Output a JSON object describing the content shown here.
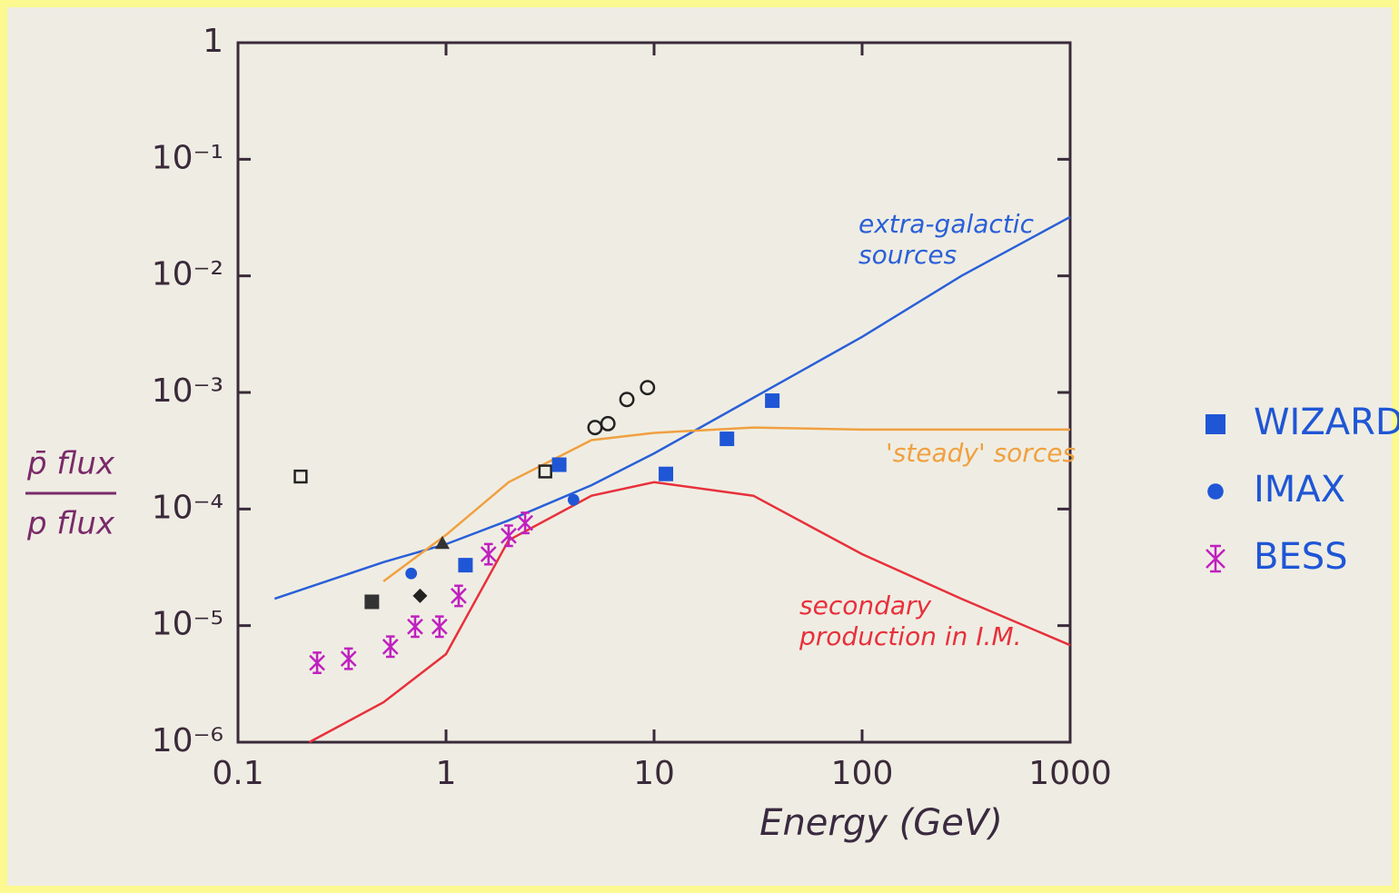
{
  "chart_data": {
    "type": "scatter",
    "xlabel": "Energy (GeV)",
    "ylabel": [
      "p̄ flux",
      "p flux"
    ],
    "xscale": "log",
    "yscale": "log",
    "xlim": [
      0.1,
      1000
    ],
    "ylim": [
      1e-06,
      1
    ],
    "xticks": [
      0.1,
      1,
      10,
      100,
      1000
    ],
    "yticks": [
      {
        "value": 1e-06,
        "label": "10⁻⁶"
      },
      {
        "value": 1e-05,
        "label": "10⁻⁵"
      },
      {
        "value": 0.0001,
        "label": "10⁻⁴"
      },
      {
        "value": 0.001,
        "label": "10⁻³"
      },
      {
        "value": 0.01,
        "label": "10⁻²"
      },
      {
        "value": 0.1,
        "label": "10⁻¹"
      },
      1
    ],
    "legend": "right",
    "curves": [
      {
        "label_lines": [
          "extra-galactic",
          "sources"
        ],
        "color": "#2a5fd8",
        "x": [
          0.15,
          0.5,
          1,
          2,
          5,
          10,
          30,
          100,
          300,
          1000
        ],
        "values": [
          1.7e-05,
          3.5e-05,
          5e-05,
          8e-05,
          0.00016,
          0.0003,
          0.0009,
          0.003,
          0.01,
          0.032
        ]
      },
      {
        "label_lines": [
          "'steady' sorces"
        ],
        "color": "#f0a040",
        "x": [
          0.5,
          1,
          2,
          5,
          10,
          30,
          100,
          1000
        ],
        "values": [
          2.4e-05,
          6e-05,
          0.00017,
          0.00039,
          0.00045,
          0.0005,
          0.00048,
          0.00048
        ]
      },
      {
        "label_lines": [
          "secondary",
          "production in I.M."
        ],
        "color": "#e8303c",
        "x": [
          0.22,
          0.5,
          1,
          2,
          5,
          10,
          30,
          100,
          300,
          1000
        ],
        "values": [
          1e-06,
          2.2e-06,
          5.7e-06,
          5.4e-05,
          0.00013,
          0.00017,
          0.00013,
          4.1e-05,
          1.7e-05,
          6.8e-06
        ]
      }
    ],
    "series": [
      {
        "name": "WIZARD",
        "marker": "square",
        "color": "#1f56d6",
        "x": [
          1.24,
          3.5,
          11.4,
          22.4,
          37
        ],
        "values": [
          3.3e-05,
          0.00024,
          0.0002,
          0.0004,
          0.00085
        ]
      },
      {
        "name": "IMAX",
        "marker": "circle",
        "color": "#1f56d6",
        "x": [
          0.68,
          4.1
        ],
        "values": [
          2.8e-05,
          0.00012
        ]
      },
      {
        "name": "BESS",
        "marker": "star",
        "color": "#c020c0",
        "x": [
          0.24,
          0.34,
          0.54,
          0.71,
          0.93,
          1.15,
          1.6,
          2.0,
          2.4
        ],
        "values": [
          4.8e-06,
          5.2e-06,
          6.6e-06,
          9.8e-06,
          9.8e-06,
          1.8e-05,
          4.1e-05,
          5.9e-05,
          7.6e-05
        ]
      }
    ],
    "unlabeled_series": [
      {
        "marker": "square-open",
        "color": "#222222",
        "x": [
          0.2,
          3.0
        ],
        "values": [
          0.00019,
          0.00021
        ]
      },
      {
        "marker": "square",
        "color": "#333333",
        "x": [
          0.44
        ],
        "values": [
          1.6e-05
        ]
      },
      {
        "marker": "diamond",
        "color": "#222222",
        "x": [
          0.75
        ],
        "values": [
          1.8e-05
        ]
      },
      {
        "marker": "triangle",
        "color": "#333333",
        "x": [
          0.96
        ],
        "values": [
          5.1e-05
        ]
      },
      {
        "marker": "circle-open",
        "color": "#222222",
        "x": [
          5.2,
          6.0,
          7.4,
          9.3
        ],
        "values": [
          0.0005,
          0.00054,
          0.00087,
          0.0011
        ]
      }
    ]
  }
}
